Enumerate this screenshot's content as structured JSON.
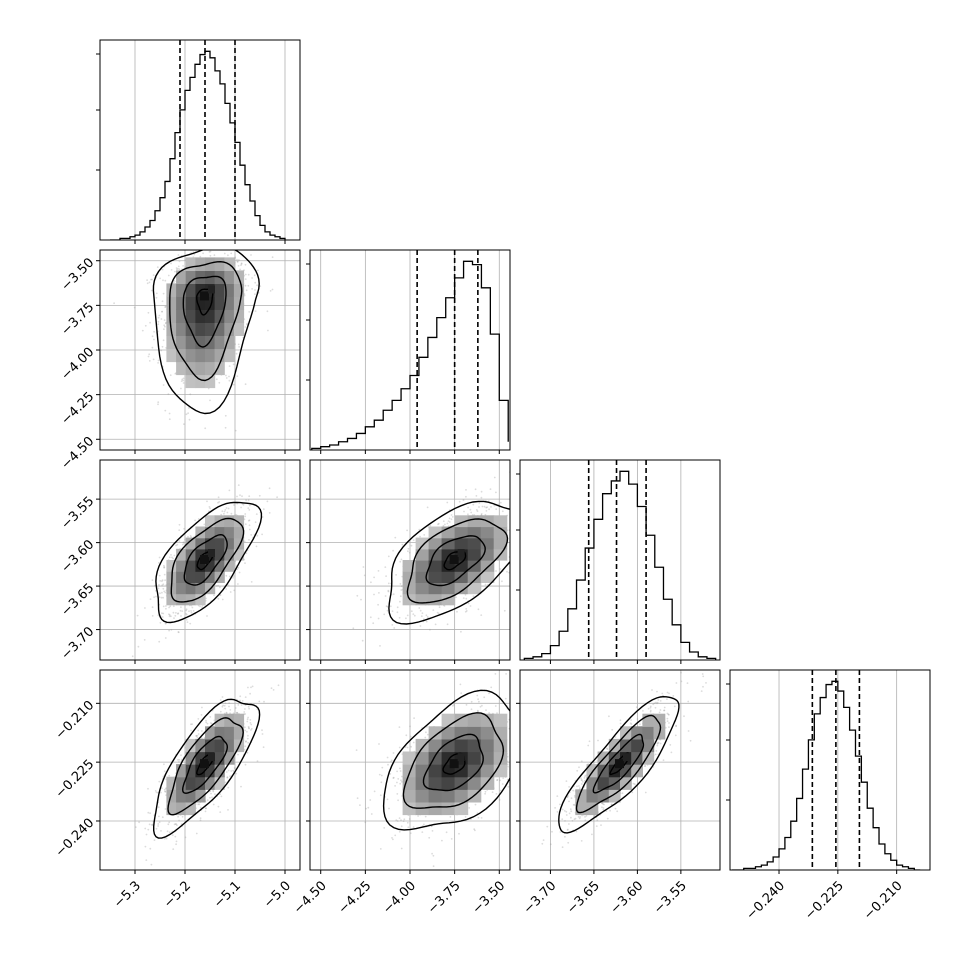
{
  "chart_data": {
    "type": "corner",
    "title": "",
    "parameters": [
      "",
      "",
      "",
      ""
    ],
    "panel_grid": 4,
    "tick_labels": {
      "x": [
        [
          "-5.3",
          "-5.2",
          "-5.1",
          "-5.0"
        ],
        [
          "-4.50",
          "-4.25",
          "-4.00",
          "-3.75",
          "-3.50"
        ],
        [
          "-3.70",
          "-3.65",
          "-3.60",
          "-3.55"
        ],
        [
          "-0.240",
          "-0.225",
          "-0.210"
        ]
      ],
      "y": [
        [],
        [
          "-3.50",
          "-3.75",
          "-4.00",
          "-4.25",
          "-4.50"
        ],
        [
          "-3.55",
          "-3.60",
          "-3.65",
          "-3.70"
        ],
        [
          "-0.210",
          "-0.225",
          "-0.240"
        ]
      ]
    },
    "axis_ranges": [
      [
        -5.37,
        -4.97
      ],
      [
        -4.56,
        -3.44
      ],
      [
        -3.735,
        -3.505
      ],
      [
        -0.2525,
        -0.2015
      ]
    ],
    "quantiles": [
      [
        -5.21,
        -5.16,
        -5.1
      ],
      [
        -3.96,
        -3.75,
        -3.62
      ],
      [
        -3.656,
        -3.624,
        -3.59
      ],
      [
        -0.2315,
        -0.2255,
        -0.2195
      ]
    ],
    "histograms": [
      {
        "bins": [
          -5.35,
          -5.34,
          -5.33,
          -5.32,
          -5.31,
          -5.3,
          -5.29,
          -5.28,
          -5.27,
          -5.26,
          -5.25,
          -5.24,
          -5.23,
          -5.22,
          -5.21,
          -5.2,
          -5.19,
          -5.18,
          -5.17,
          -5.16,
          -5.15,
          -5.14,
          -5.13,
          -5.12,
          -5.11,
          -5.1,
          -5.09,
          -5.08,
          -5.07,
          -5.06,
          -5.05,
          -5.04,
          -5.03,
          -5.02,
          -5.01,
          -5.0
        ],
        "counts": [
          0,
          0,
          1,
          1,
          2,
          3,
          5,
          8,
          12,
          18,
          26,
          36,
          50,
          66,
          80,
          92,
          100,
          108,
          114,
          116,
          112,
          104,
          96,
          84,
          72,
          60,
          46,
          34,
          24,
          15,
          9,
          5,
          3,
          2,
          1
        ]
      },
      {
        "bins": [
          -4.55,
          -4.5,
          -4.45,
          -4.4,
          -4.35,
          -4.3,
          -4.25,
          -4.2,
          -4.15,
          -4.1,
          -4.05,
          -4.0,
          -3.95,
          -3.9,
          -3.85,
          -3.8,
          -3.75,
          -3.7,
          -3.65,
          -3.6,
          -3.55,
          -3.5,
          -3.45
        ],
        "counts": [
          1,
          2,
          3,
          5,
          7,
          10,
          14,
          18,
          24,
          30,
          37,
          45,
          56,
          68,
          80,
          92,
          104,
          114,
          112,
          98,
          70,
          30,
          5
        ]
      },
      {
        "bins": [
          -3.73,
          -3.72,
          -3.71,
          -3.7,
          -3.69,
          -3.68,
          -3.67,
          -3.66,
          -3.65,
          -3.64,
          -3.63,
          -3.62,
          -3.61,
          -3.6,
          -3.59,
          -3.58,
          -3.57,
          -3.56,
          -3.55,
          -3.54,
          -3.53,
          -3.52,
          -3.51
        ],
        "counts": [
          1,
          2,
          4,
          9,
          18,
          32,
          50,
          70,
          88,
          104,
          112,
          118,
          110,
          96,
          78,
          58,
          38,
          22,
          11,
          5,
          2,
          1
        ]
      },
      {
        "bins": [
          -0.252,
          -0.2505,
          -0.249,
          -0.2475,
          -0.246,
          -0.2445,
          -0.243,
          -0.2415,
          -0.24,
          -0.2385,
          -0.237,
          -0.2355,
          -0.234,
          -0.2325,
          -0.231,
          -0.2295,
          -0.228,
          -0.2265,
          -0.225,
          -0.2235,
          -0.222,
          -0.2205,
          -0.219,
          -0.2175,
          -0.216,
          -0.2145,
          -0.213,
          -0.2115,
          -0.21,
          -0.2085,
          -0.207,
          -0.2055,
          -0.204
        ],
        "counts": [
          0,
          0,
          1,
          1,
          2,
          3,
          5,
          8,
          13,
          20,
          30,
          44,
          62,
          80,
          96,
          106,
          114,
          116,
          110,
          100,
          86,
          70,
          54,
          38,
          26,
          16,
          10,
          6,
          3,
          2,
          1,
          0
        ]
      }
    ],
    "pairs": [
      {
        "row": 1,
        "col": 0,
        "mean": [
          -5.16,
          -3.7
        ],
        "sd": [
          0.045,
          0.17
        ],
        "rho": 0.15,
        "skew_y": 0.6
      },
      {
        "row": 2,
        "col": 0,
        "mean": [
          -5.16,
          -3.62
        ],
        "sd": [
          0.045,
          0.03
        ],
        "rho": 0.65,
        "skew_y": 0
      },
      {
        "row": 2,
        "col": 1,
        "mean": [
          -3.75,
          -3.62
        ],
        "sd": [
          0.17,
          0.03
        ],
        "rho": 0.55,
        "skew_y": 0
      },
      {
        "row": 3,
        "col": 0,
        "mean": [
          -5.16,
          -0.2255
        ],
        "sd": [
          0.045,
          0.0075
        ],
        "rho": 0.75,
        "skew_y": 0
      },
      {
        "row": 3,
        "col": 1,
        "mean": [
          -3.75,
          -0.2255
        ],
        "sd": [
          0.17,
          0.0075
        ],
        "rho": 0.45,
        "skew_y": 0
      },
      {
        "row": 3,
        "col": 2,
        "mean": [
          -3.62,
          -0.2255
        ],
        "sd": [
          0.03,
          0.0075
        ],
        "rho": 0.85,
        "skew_y": 0
      }
    ],
    "grid": true,
    "colors": {
      "line": "#000000",
      "grid": "#b0b0b0",
      "scatter": "#9a9a9a"
    }
  }
}
